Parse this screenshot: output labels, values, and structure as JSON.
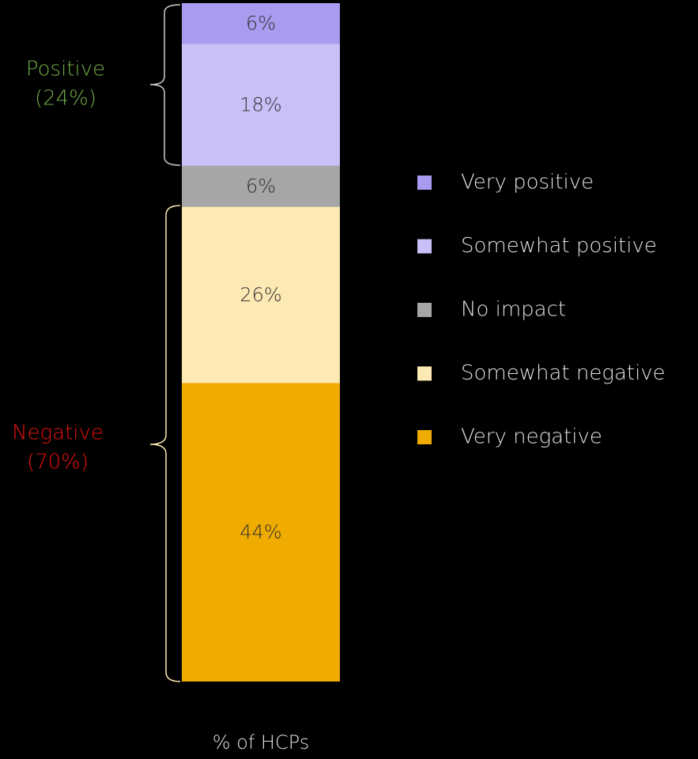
{
  "chart_data": {
    "type": "stacked_bar",
    "xlabel": "% of HCPs",
    "ylim": [
      0,
      100
    ],
    "series": [
      {
        "name": "Very positive",
        "color": "#a99cf0",
        "values": [
          6
        ],
        "value_labels": [
          "6%"
        ]
      },
      {
        "name": "Somewhat positive",
        "color": "#c8c0f7",
        "values": [
          18
        ],
        "value_labels": [
          "18%"
        ]
      },
      {
        "name": "No impact",
        "color": "#a6a6a6",
        "values": [
          6
        ],
        "value_labels": [
          "6%"
        ]
      },
      {
        "name": "Somewhat negative",
        "color": "#fde9b4",
        "values": [
          26
        ],
        "value_labels": [
          "26%"
        ]
      },
      {
        "name": "Very negative",
        "color": "#f0ab00",
        "values": [
          44
        ],
        "value_labels": [
          "44%"
        ]
      }
    ],
    "annotations": [
      {
        "lines": [
          "Positive",
          "(24%)"
        ],
        "color": "#70ad47"
      },
      {
        "lines": [
          "Negative",
          "(70%)"
        ],
        "color": "#e81010"
      }
    ]
  }
}
